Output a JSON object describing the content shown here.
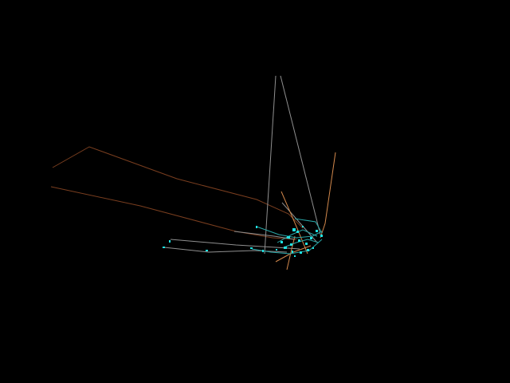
{
  "scene": {
    "background_color": "#000000",
    "colors": {
      "grey_line": "#8f8f8f",
      "orange_line": "#d2884c",
      "dark_orange_line": "#7a3e1f",
      "cyan_node": "#1fe3e3",
      "teal_line": "#2aa6a6"
    }
  }
}
